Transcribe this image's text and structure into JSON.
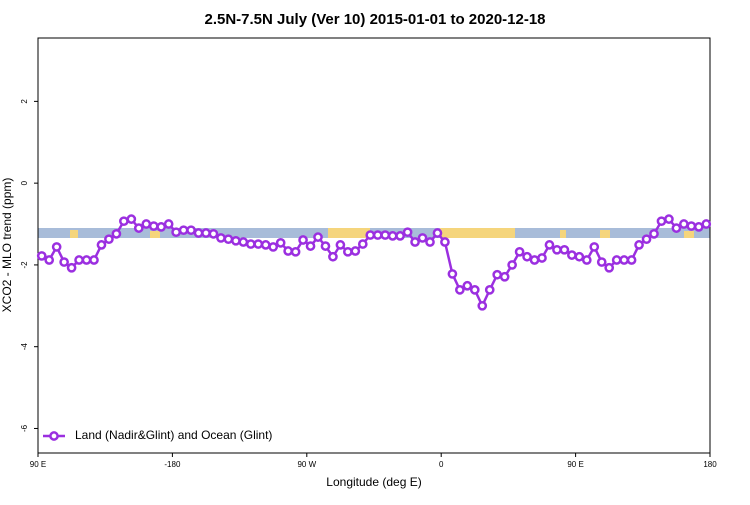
{
  "chart_data": {
    "type": "line",
    "title": "2.5N-7.5N July (Ver 10)   2015-01-01 to 2020-12-18",
    "x_label": "Longitude (deg E)",
    "y_label": "XCO2 - MLO trend (ppm)",
    "xlim": [
      -270,
      180
    ],
    "xticks": [
      {
        "value": -270,
        "label": "90 E"
      },
      -180,
      {
        "value": -90,
        "label": "90 W"
      },
      0,
      {
        "value": 90,
        "label": "90 E"
      },
      180
    ],
    "ylim": [
      -6.6,
      3.55
    ],
    "yticks": [
      2,
      0,
      -2,
      -4,
      -6
    ],
    "legend": "bottom-left",
    "x": [
      -267.5,
      -262.5,
      -257.5,
      -252.5,
      -247.5,
      -242.5,
      -237.5,
      -232.5,
      -227.5,
      -222.5,
      -217.5,
      -212.5,
      -207.5,
      -202.5,
      -197.5,
      -192.5,
      -187.5,
      -182.5,
      -177.5,
      -172.5,
      -167.5,
      -162.5,
      -157.5,
      -152.5,
      -147.5,
      -142.5,
      -137.5,
      -132.5,
      -127.5,
      -122.5,
      -117.5,
      -112.5,
      -107.5,
      -102.5,
      -97.5,
      -92.5,
      -87.5,
      -82.5,
      -77.5,
      -72.5,
      -67.5,
      -62.5,
      -57.5,
      -52.5,
      -47.5,
      -42.5,
      -37.5,
      -32.5,
      -27.5,
      -22.5,
      -17.5,
      -12.5,
      -7.5,
      -2.5,
      2.5,
      7.5,
      12.5,
      17.5,
      22.5,
      27.5,
      32.5,
      37.5,
      42.5,
      47.5,
      52.5,
      57.5,
      62.5,
      67.5,
      72.5,
      77.5,
      82.5,
      87.5,
      92.5,
      97.5,
      102.5,
      107.5,
      112.5,
      117.5,
      122.5,
      127.5,
      132.5,
      137.5,
      142.5,
      147.5,
      152.5,
      157.5,
      162.5,
      167.5,
      172.5,
      177.5
    ],
    "series": [
      {
        "name": "Land (Nadir&Glint) and Ocean (Glint)",
        "color": "#9b2fe0",
        "values": [
          -1.78,
          -1.88,
          -1.56,
          -1.93,
          -2.07,
          -1.88,
          -1.88,
          -1.88,
          -1.51,
          -1.37,
          -1.24,
          -0.93,
          -0.88,
          -1.1,
          -1.0,
          -1.05,
          -1.07,
          -1.0,
          -1.2,
          -1.15,
          -1.15,
          -1.22,
          -1.22,
          -1.24,
          -1.34,
          -1.37,
          -1.41,
          -1.44,
          -1.49,
          -1.49,
          -1.51,
          -1.56,
          -1.46,
          -1.66,
          -1.68,
          -1.39,
          -1.54,
          -1.32,
          -1.54,
          -1.8,
          -1.51,
          -1.68,
          -1.66,
          -1.49,
          -1.27,
          -1.27,
          -1.27,
          -1.29,
          -1.29,
          -1.2,
          -1.44,
          -1.34,
          -1.44,
          -1.22,
          -1.44,
          -2.22,
          -2.61,
          -2.51,
          -2.61,
          -3.0,
          -2.61,
          -2.24,
          -2.29,
          -2.0,
          -1.68,
          -1.8,
          -1.88,
          -1.83,
          -1.51,
          -1.63,
          -1.63,
          -1.76,
          -1.8,
          -1.88,
          -1.56,
          -1.93,
          -2.07,
          -1.88,
          -1.88,
          -1.88,
          -1.51,
          -1.37,
          -1.24,
          -0.93,
          -0.88,
          -1.1,
          -1.0,
          -1.05,
          -1.07,
          -1.0
        ]
      }
    ]
  }
}
